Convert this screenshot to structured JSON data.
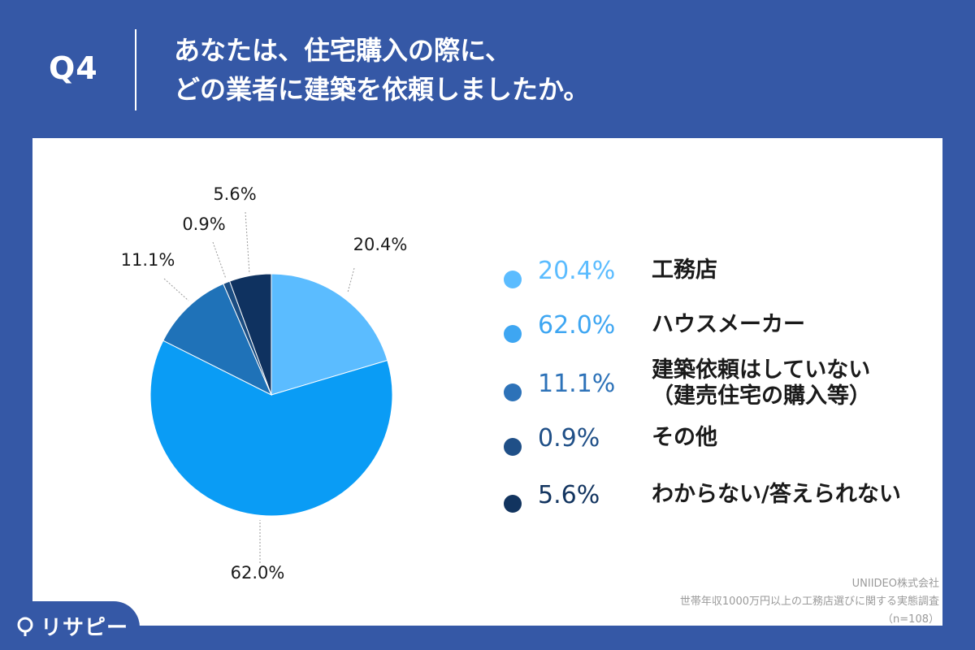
{
  "header": {
    "q_label": "Q4",
    "title_line1": "あなたは、住宅購入の際に、",
    "title_line2": "どの業者に建築を依頼しましたか。"
  },
  "colors": {
    "background": "#3558a6",
    "card": "#ffffff"
  },
  "chart_data": {
    "type": "pie",
    "start_angle_deg": 0,
    "direction": "clockwise",
    "slices": [
      {
        "label": "工務店",
        "label_line2": "",
        "value": 20.4,
        "display": "20.4%",
        "color": "#5bbcff",
        "legend_color": "#5bbcff"
      },
      {
        "label": "ハウスメーカー",
        "label_line2": "",
        "value": 62.0,
        "display": "62.0%",
        "color": "#0a9cf5",
        "legend_color": "#3ea6f2"
      },
      {
        "label": "建築依頼はしていない",
        "label_line2": "（建売住宅の購入等）",
        "value": 11.1,
        "display": "11.1%",
        "color": "#1f72b8",
        "legend_color": "#2d72b8"
      },
      {
        "label": "その他",
        "label_line2": "",
        "value": 0.9,
        "display": "0.9%",
        "color": "#1b4d82",
        "legend_color": "#1f4f87"
      },
      {
        "label": "わからない/答えられない",
        "label_line2": "",
        "value": 5.6,
        "display": "5.6%",
        "color": "#0f3260",
        "legend_color": "#12345f"
      }
    ]
  },
  "source": {
    "line1": "UNIIDEO株式会社",
    "line2": "世帯年収1000万円以上の工務店選びに関する実態調査",
    "line3": "（n=108）"
  },
  "logo": {
    "text": "リサピー"
  }
}
